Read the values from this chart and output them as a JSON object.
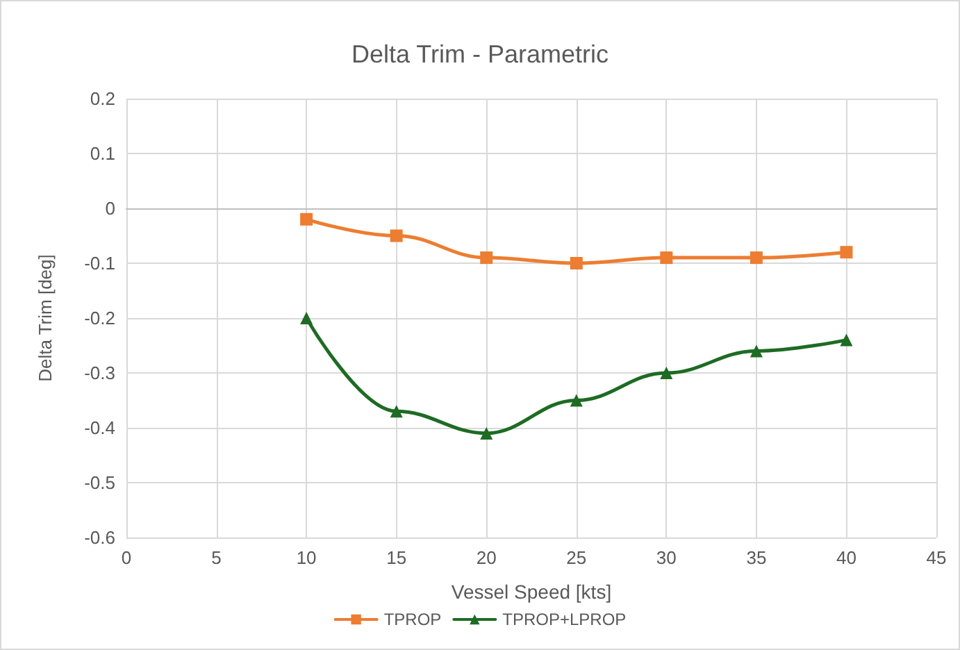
{
  "chart_data": {
    "type": "line",
    "title": "Delta Trim - Parametric",
    "xlabel": "Vessel Speed [kts]",
    "ylabel": "Delta Trim [deg]",
    "x": [
      10,
      15,
      20,
      25,
      30,
      35,
      40
    ],
    "series": [
      {
        "name": "TPROP",
        "color": "#ed7d31",
        "marker": "square",
        "values": [
          -0.02,
          -0.05,
          -0.09,
          -0.1,
          -0.09,
          -0.09,
          -0.08
        ]
      },
      {
        "name": "TPROP+LPROP",
        "color": "#1e6b24",
        "marker": "triangle",
        "values": [
          -0.2,
          -0.37,
          -0.41,
          -0.35,
          -0.3,
          -0.26,
          -0.24
        ]
      }
    ],
    "xlim": [
      0,
      45
    ],
    "xticks": [
      0,
      5,
      10,
      15,
      20,
      25,
      30,
      35,
      40,
      45
    ],
    "ylim": [
      -0.6,
      0.2
    ],
    "yticks": [
      -0.6,
      -0.5,
      -0.4,
      -0.3,
      -0.2,
      -0.1,
      0,
      0.1,
      0.2
    ],
    "grid": true,
    "legend": "bottom",
    "line_style": "solid"
  }
}
